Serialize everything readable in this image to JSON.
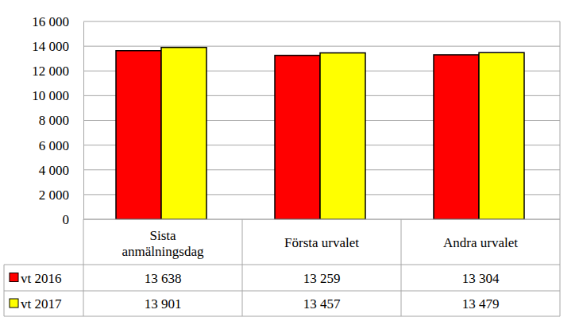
{
  "chart_data": {
    "type": "bar",
    "categories": [
      "Sista anmälningsdag",
      "Första urvalet",
      "Andra urvalet"
    ],
    "series": [
      {
        "name": "vt 2016",
        "color": "#ff0000",
        "values": [
          13638,
          13259,
          13304
        ],
        "value_labels": [
          "13 638",
          "13 259",
          "13 304"
        ]
      },
      {
        "name": "vt 2017",
        "color": "#ffff00",
        "values": [
          13901,
          13457,
          13479
        ],
        "value_labels": [
          "13 901",
          "13 457",
          "13 479"
        ]
      }
    ],
    "ylim": [
      0,
      16000
    ],
    "yticks": [
      {
        "value": 0,
        "label": "0"
      },
      {
        "value": 2000,
        "label": "2 000"
      },
      {
        "value": 4000,
        "label": "4 000"
      },
      {
        "value": 6000,
        "label": "6 000"
      },
      {
        "value": 8000,
        "label": "8 000"
      },
      {
        "value": 10000,
        "label": "10 000"
      },
      {
        "value": 12000,
        "label": "12 000"
      },
      {
        "value": 14000,
        "label": "14 000"
      },
      {
        "value": 16000,
        "label": "16 000"
      }
    ],
    "grid": true
  }
}
